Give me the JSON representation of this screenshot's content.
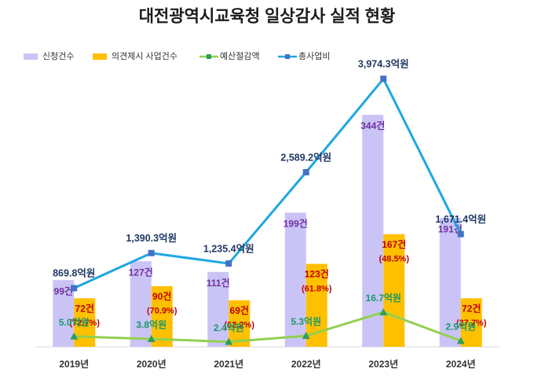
{
  "chart_data": {
    "type": "combo",
    "title": "대전광역시교육청 일상감사 실적 현황",
    "categories": [
      "2019년",
      "2020년",
      "2021년",
      "2022년",
      "2023년",
      "2024년"
    ],
    "ylim": [
      0,
      400
    ],
    "y2lim": [
      0,
      4000
    ],
    "y3lim": [
      0,
      130
    ],
    "series": [
      {
        "name": "신청건수",
        "type": "bar",
        "color": "#cac4f6",
        "label_color": "#7030a0",
        "values": [
          99,
          127,
          111,
          199,
          344,
          191
        ],
        "value_labels": [
          "99건",
          "127건",
          "111건",
          "199건",
          "344건",
          "191건"
        ]
      },
      {
        "name": "의견제시 사업건수",
        "type": "bar",
        "color": "#ffc000",
        "label_color": "#c00000",
        "values": [
          72,
          90,
          69,
          123,
          167,
          72
        ],
        "value_labels": [
          "72건",
          "90건",
          "69건",
          "123건",
          "167건",
          "72건"
        ],
        "ratios": [
          72.7,
          70.9,
          62.2,
          61.8,
          48.5,
          37.7
        ],
        "ratio_labels": [
          "(72.7%)",
          "(70.9%)",
          "(62.2%)",
          "(61.8%)",
          "(48.5%)",
          "(37.7%)"
        ]
      },
      {
        "name": "예산절감액",
        "type": "line",
        "axis": "y3",
        "color": "#92d050",
        "marker_color": "#2e9c5c",
        "label_color": "#1a9a6a",
        "values": [
          5.0,
          3.8,
          2.4,
          5.3,
          16.7,
          2.9
        ],
        "value_labels": [
          "5.0억원",
          "3.8억원",
          "2.4억원",
          "5.3억원",
          "16.7억원",
          "2.9억원"
        ]
      },
      {
        "name": "총사업비",
        "type": "line",
        "axis": "y2",
        "color": "#1ea7e1",
        "marker_color": "#4472c4",
        "label_color": "#1f3864",
        "values": [
          869.8,
          1390.3,
          1235.4,
          2589.2,
          3974.3,
          1671.4
        ],
        "value_labels": [
          "869.8억원",
          "1,390.3억원",
          "1,235.4억원",
          "2,589.2억원",
          "3,974.3억원",
          "1,671.4억원"
        ]
      }
    ]
  }
}
